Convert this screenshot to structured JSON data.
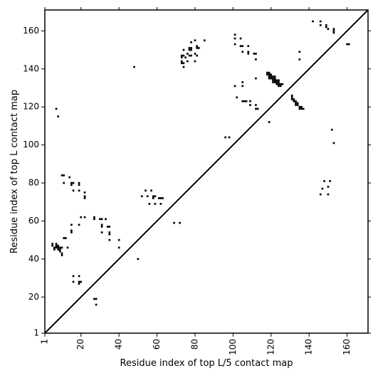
{
  "chart_data": {
    "type": "scatter",
    "xlabel": "Residue index of top L/5 contact map",
    "ylabel": "Residue index of top L contact map",
    "xlim": [
      1,
      171
    ],
    "ylim": [
      1,
      171
    ],
    "xticks": [
      1,
      20,
      40,
      60,
      80,
      100,
      120,
      140,
      160
    ],
    "yticks": [
      1,
      20,
      40,
      60,
      80,
      100,
      120,
      140,
      160
    ],
    "marker_color": "#000000",
    "diagonal": true,
    "grid": false,
    "points": [
      [
        5,
        48
      ],
      [
        5,
        47
      ],
      [
        6,
        46
      ],
      [
        6,
        45
      ],
      [
        7,
        47
      ],
      [
        7,
        48
      ],
      [
        7,
        46
      ],
      [
        8,
        46
      ],
      [
        8,
        45
      ],
      [
        8,
        47
      ],
      [
        9,
        46
      ],
      [
        9,
        45
      ],
      [
        9,
        44
      ],
      [
        10,
        43
      ],
      [
        10,
        42
      ],
      [
        10,
        46
      ],
      [
        7,
        119
      ],
      [
        8,
        115
      ],
      [
        10,
        84
      ],
      [
        11,
        84
      ],
      [
        11,
        80
      ],
      [
        12,
        51
      ],
      [
        11,
        51
      ],
      [
        13,
        46
      ],
      [
        14,
        83
      ],
      [
        15,
        80
      ],
      [
        15,
        79
      ],
      [
        16,
        80
      ],
      [
        16,
        76
      ],
      [
        15,
        58
      ],
      [
        15,
        55
      ],
      [
        15,
        54
      ],
      [
        16,
        31
      ],
      [
        16,
        28
      ],
      [
        19,
        80
      ],
      [
        19,
        79
      ],
      [
        19,
        76
      ],
      [
        19,
        31
      ],
      [
        19,
        28
      ],
      [
        19,
        27
      ],
      [
        20,
        62
      ],
      [
        19,
        58
      ],
      [
        20,
        28
      ],
      [
        22,
        75
      ],
      [
        22,
        73
      ],
      [
        22,
        72
      ],
      [
        22,
        62
      ],
      [
        27,
        62
      ],
      [
        27,
        61
      ],
      [
        27,
        19
      ],
      [
        28,
        19
      ],
      [
        28,
        16
      ],
      [
        30,
        61
      ],
      [
        31,
        61
      ],
      [
        31,
        58
      ],
      [
        31,
        57
      ],
      [
        31,
        54
      ],
      [
        33,
        61
      ],
      [
        34,
        57
      ],
      [
        35,
        57
      ],
      [
        35,
        54
      ],
      [
        35,
        53
      ],
      [
        35,
        50
      ],
      [
        40,
        50
      ],
      [
        40,
        46
      ],
      [
        48,
        141
      ],
      [
        50,
        40
      ],
      [
        52,
        73
      ],
      [
        54,
        76
      ],
      [
        55,
        73
      ],
      [
        56,
        69
      ],
      [
        57,
        76
      ],
      [
        58,
        73
      ],
      [
        58,
        72
      ],
      [
        59,
        73
      ],
      [
        59,
        69
      ],
      [
        61,
        72
      ],
      [
        62,
        72
      ],
      [
        62,
        69
      ],
      [
        63,
        72
      ],
      [
        69,
        59
      ],
      [
        72,
        59
      ],
      [
        73,
        147
      ],
      [
        73,
        146
      ],
      [
        73,
        144
      ],
      [
        73,
        143
      ],
      [
        74,
        143
      ],
      [
        74,
        141
      ],
      [
        74,
        150
      ],
      [
        74,
        147
      ],
      [
        75,
        146
      ],
      [
        76,
        148
      ],
      [
        76,
        144
      ],
      [
        77,
        151
      ],
      [
        77,
        150
      ],
      [
        77,
        147
      ],
      [
        78,
        150
      ],
      [
        78,
        151
      ],
      [
        78,
        154
      ],
      [
        78,
        147
      ],
      [
        80,
        155
      ],
      [
        80,
        144
      ],
      [
        80,
        148
      ],
      [
        81,
        147
      ],
      [
        81,
        152
      ],
      [
        81,
        151
      ],
      [
        82,
        151
      ],
      [
        85,
        155
      ],
      [
        96,
        104
      ],
      [
        98,
        104
      ],
      [
        101,
        158
      ],
      [
        101,
        156
      ],
      [
        101,
        153
      ],
      [
        101,
        131
      ],
      [
        102,
        125
      ],
      [
        104,
        156
      ],
      [
        104,
        152
      ],
      [
        105,
        152
      ],
      [
        105,
        149
      ],
      [
        105,
        133
      ],
      [
        105,
        131
      ],
      [
        105,
        123
      ],
      [
        106,
        123
      ],
      [
        107,
        123
      ],
      [
        108,
        152
      ],
      [
        108,
        149
      ],
      [
        108,
        148
      ],
      [
        109,
        123
      ],
      [
        109,
        121
      ],
      [
        111,
        148
      ],
      [
        112,
        148
      ],
      [
        112,
        145
      ],
      [
        112,
        135
      ],
      [
        112,
        121
      ],
      [
        112,
        119
      ],
      [
        113,
        119
      ],
      [
        118,
        138
      ],
      [
        118,
        137
      ],
      [
        119,
        138
      ],
      [
        119,
        137
      ],
      [
        119,
        136
      ],
      [
        119,
        135
      ],
      [
        119,
        112
      ],
      [
        120,
        137
      ],
      [
        120,
        136
      ],
      [
        120,
        135
      ],
      [
        121,
        136
      ],
      [
        121,
        135
      ],
      [
        121,
        134
      ],
      [
        121,
        133
      ],
      [
        122,
        136
      ],
      [
        122,
        135
      ],
      [
        122,
        134
      ],
      [
        122,
        133
      ],
      [
        123,
        134
      ],
      [
        123,
        133
      ],
      [
        123,
        132
      ],
      [
        124,
        134
      ],
      [
        124,
        133
      ],
      [
        124,
        132
      ],
      [
        124,
        131
      ],
      [
        125,
        132
      ],
      [
        125,
        131
      ],
      [
        126,
        132
      ],
      [
        131,
        126
      ],
      [
        131,
        125
      ],
      [
        131,
        124
      ],
      [
        132,
        124
      ],
      [
        132,
        123
      ],
      [
        133,
        123
      ],
      [
        133,
        122
      ],
      [
        133,
        121
      ],
      [
        134,
        122
      ],
      [
        134,
        121
      ],
      [
        135,
        149
      ],
      [
        135,
        145
      ],
      [
        135,
        120
      ],
      [
        135,
        119
      ],
      [
        136,
        120
      ],
      [
        136,
        119
      ],
      [
        137,
        119
      ],
      [
        142,
        165
      ],
      [
        146,
        165
      ],
      [
        146,
        163
      ],
      [
        146,
        74
      ],
      [
        147,
        77
      ],
      [
        148,
        81
      ],
      [
        149,
        163
      ],
      [
        149,
        162
      ],
      [
        150,
        161
      ],
      [
        150,
        78
      ],
      [
        150,
        74
      ],
      [
        151,
        81
      ],
      [
        152,
        108
      ],
      [
        153,
        101
      ],
      [
        153,
        161
      ],
      [
        153,
        160
      ],
      [
        153,
        159
      ],
      [
        160,
        153
      ],
      [
        161,
        153
      ]
    ]
  }
}
